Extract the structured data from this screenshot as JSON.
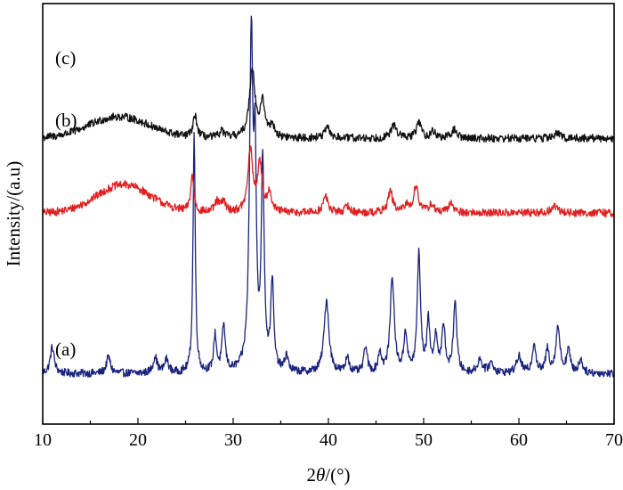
{
  "chart_data": {
    "type": "line",
    "xlabel": "2θ/(°)",
    "ylabel": "Intensity/(a.u)",
    "xlim": [
      10,
      70
    ],
    "x_ticks": [
      "10",
      "20",
      "30",
      "40",
      "50",
      "60",
      "70"
    ],
    "y_ticks": [],
    "grid": false,
    "legend": "none",
    "series": [
      {
        "name": "(a)",
        "color": "#1a237e",
        "baseline": 0.05,
        "noise": 0.012,
        "hump": {
          "center": 18,
          "width": 6,
          "height": 0.0
        },
        "peaks": [
          {
            "x": 11.0,
            "height": 0.08,
            "width": 0.25
          },
          {
            "x": 16.9,
            "height": 0.05,
            "width": 0.25
          },
          {
            "x": 21.8,
            "height": 0.05,
            "width": 0.25
          },
          {
            "x": 23.0,
            "height": 0.04,
            "width": 0.25
          },
          {
            "x": 25.9,
            "height": 0.72,
            "width": 0.14
          },
          {
            "x": 28.1,
            "height": 0.11,
            "width": 0.18
          },
          {
            "x": 29.0,
            "height": 0.14,
            "width": 0.2
          },
          {
            "x": 31.9,
            "height": 1.0,
            "width": 0.22
          },
          {
            "x": 32.3,
            "height": 0.55,
            "width": 0.15
          },
          {
            "x": 33.1,
            "height": 0.62,
            "width": 0.18
          },
          {
            "x": 34.1,
            "height": 0.27,
            "width": 0.18
          },
          {
            "x": 35.6,
            "height": 0.05,
            "width": 0.2
          },
          {
            "x": 39.8,
            "height": 0.22,
            "width": 0.3
          },
          {
            "x": 42.0,
            "height": 0.05,
            "width": 0.2
          },
          {
            "x": 43.9,
            "height": 0.08,
            "width": 0.2
          },
          {
            "x": 45.4,
            "height": 0.06,
            "width": 0.2
          },
          {
            "x": 46.7,
            "height": 0.29,
            "width": 0.25
          },
          {
            "x": 48.1,
            "height": 0.12,
            "width": 0.2
          },
          {
            "x": 49.5,
            "height": 0.36,
            "width": 0.2
          },
          {
            "x": 50.5,
            "height": 0.15,
            "width": 0.2
          },
          {
            "x": 51.3,
            "height": 0.11,
            "width": 0.2
          },
          {
            "x": 52.1,
            "height": 0.14,
            "width": 0.2
          },
          {
            "x": 53.3,
            "height": 0.22,
            "width": 0.2
          },
          {
            "x": 55.9,
            "height": 0.04,
            "width": 0.3
          },
          {
            "x": 57.1,
            "height": 0.03,
            "width": 0.3
          },
          {
            "x": 60.0,
            "height": 0.05,
            "width": 0.3
          },
          {
            "x": 61.6,
            "height": 0.09,
            "width": 0.22
          },
          {
            "x": 63.0,
            "height": 0.07,
            "width": 0.22
          },
          {
            "x": 64.1,
            "height": 0.14,
            "width": 0.25
          },
          {
            "x": 65.2,
            "height": 0.07,
            "width": 0.22
          },
          {
            "x": 66.5,
            "height": 0.04,
            "width": 0.25
          }
        ]
      },
      {
        "name": "(b)",
        "color": "#e02020",
        "baseline": 0.535,
        "noise": 0.012,
        "hump": {
          "center": 18.5,
          "width": 4.0,
          "height": 0.085
        },
        "peaks": [
          {
            "x": 25.7,
            "height": 0.11,
            "width": 0.2
          },
          {
            "x": 28.3,
            "height": 0.03,
            "width": 0.3
          },
          {
            "x": 29.0,
            "height": 0.03,
            "width": 0.3
          },
          {
            "x": 31.8,
            "height": 0.185,
            "width": 0.3
          },
          {
            "x": 32.8,
            "height": 0.14,
            "width": 0.3
          },
          {
            "x": 33.8,
            "height": 0.06,
            "width": 0.25
          },
          {
            "x": 39.7,
            "height": 0.05,
            "width": 0.3
          },
          {
            "x": 42.0,
            "height": 0.02,
            "width": 0.3
          },
          {
            "x": 46.5,
            "height": 0.065,
            "width": 0.3
          },
          {
            "x": 48.2,
            "height": 0.02,
            "width": 0.3
          },
          {
            "x": 49.2,
            "height": 0.08,
            "width": 0.3
          },
          {
            "x": 50.8,
            "height": 0.025,
            "width": 0.3
          },
          {
            "x": 52.9,
            "height": 0.03,
            "width": 0.3
          },
          {
            "x": 63.8,
            "height": 0.02,
            "width": 0.4
          }
        ]
      },
      {
        "name": "(c)",
        "color": "#111111",
        "baseline": 0.76,
        "noise": 0.012,
        "hump": {
          "center": 18.0,
          "width": 4.5,
          "height": 0.065
        },
        "peaks": [
          {
            "x": 26.0,
            "height": 0.065,
            "width": 0.25
          },
          {
            "x": 28.8,
            "height": 0.02,
            "width": 0.3
          },
          {
            "x": 32.0,
            "height": 0.21,
            "width": 0.35
          },
          {
            "x": 33.1,
            "height": 0.1,
            "width": 0.3
          },
          {
            "x": 34.1,
            "height": 0.04,
            "width": 0.25
          },
          {
            "x": 39.9,
            "height": 0.03,
            "width": 0.35
          },
          {
            "x": 46.9,
            "height": 0.04,
            "width": 0.35
          },
          {
            "x": 49.5,
            "height": 0.05,
            "width": 0.3
          },
          {
            "x": 51.0,
            "height": 0.02,
            "width": 0.3
          },
          {
            "x": 53.2,
            "height": 0.025,
            "width": 0.35
          },
          {
            "x": 64.0,
            "height": 0.015,
            "width": 0.4
          }
        ]
      }
    ]
  }
}
